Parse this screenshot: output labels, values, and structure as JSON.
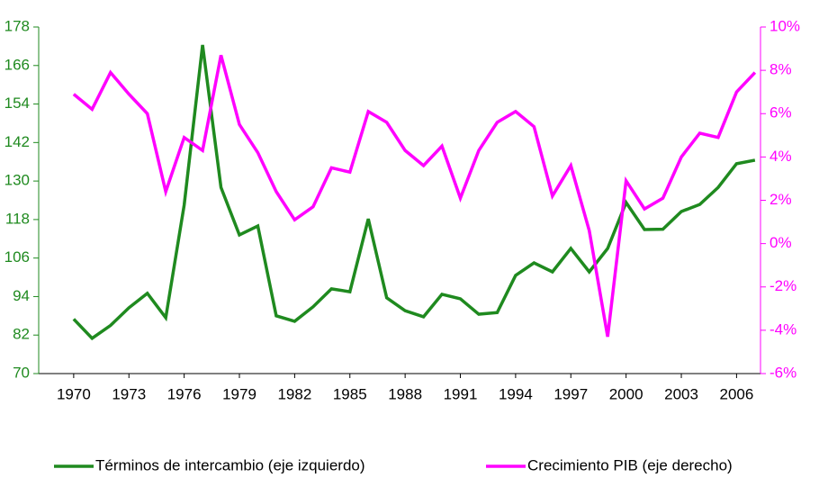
{
  "chart_data": {
    "type": "line",
    "x": [
      1970,
      1971,
      1972,
      1973,
      1974,
      1975,
      1976,
      1977,
      1978,
      1979,
      1980,
      1981,
      1982,
      1983,
      1984,
      1985,
      1986,
      1987,
      1988,
      1989,
      1990,
      1991,
      1992,
      1993,
      1994,
      1995,
      1996,
      1997,
      1998,
      1999,
      2000,
      2001,
      2002,
      2003,
      2004,
      2005,
      2006,
      2007
    ],
    "xlim": [
      1968.1,
      2007.3
    ],
    "xticks": [
      1970,
      1973,
      1976,
      1979,
      1982,
      1985,
      1988,
      1991,
      1994,
      1997,
      2000,
      2003,
      2006
    ],
    "ylim": [
      70,
      178
    ],
    "yticks": [
      70,
      82,
      94,
      106,
      118,
      130,
      142,
      154,
      166,
      178
    ],
    "y2lim": [
      -6,
      10
    ],
    "y2ticks": [
      {
        "value": -6,
        "label": "-6%"
      },
      {
        "value": -4,
        "label": "-4%"
      },
      {
        "value": -2,
        "label": "-2%"
      },
      {
        "value": 0,
        "label": "0%"
      },
      {
        "value": 2,
        "label": "2%"
      },
      {
        "value": 4,
        "label": "4%"
      },
      {
        "value": 6,
        "label": "6%"
      },
      {
        "value": 8,
        "label": "8%"
      },
      {
        "value": 10,
        "label": "10%"
      }
    ],
    "grid": false,
    "legend": "bottom",
    "series": [
      {
        "name": "Términos de intercambio (eje izquierdo)",
        "color": "#1f8a1f",
        "axis": "y",
        "values": [
          87,
          81,
          85,
          90.5,
          95,
          87.4,
          122.5,
          172.4,
          128,
          113.2,
          116,
          88,
          86.3,
          90.8,
          96.4,
          95.5,
          118.2,
          93.6,
          89.6,
          87.7,
          94.7,
          93.3,
          88.5,
          89,
          100.6,
          104.5,
          101.7,
          109,
          101.7,
          109,
          123.3,
          114.9,
          115,
          120.5,
          122.7,
          128,
          135.4,
          136.5
        ]
      },
      {
        "name": "Crecimiento PIB (eje derecho)",
        "color": "#ff00ff",
        "axis": "y2",
        "values": [
          6.9,
          6.2,
          7.9,
          6.9,
          6.0,
          2.4,
          4.9,
          4.3,
          8.7,
          5.5,
          4.2,
          2.4,
          1.1,
          1.7,
          3.5,
          3.3,
          6.1,
          5.6,
          4.3,
          3.6,
          4.5,
          2.1,
          4.3,
          5.6,
          6.1,
          5.4,
          2.2,
          3.6,
          0.6,
          -4.3,
          2.9,
          1.6,
          2.1,
          4.0,
          5.1,
          4.9,
          7.0,
          7.9
        ]
      }
    ]
  }
}
